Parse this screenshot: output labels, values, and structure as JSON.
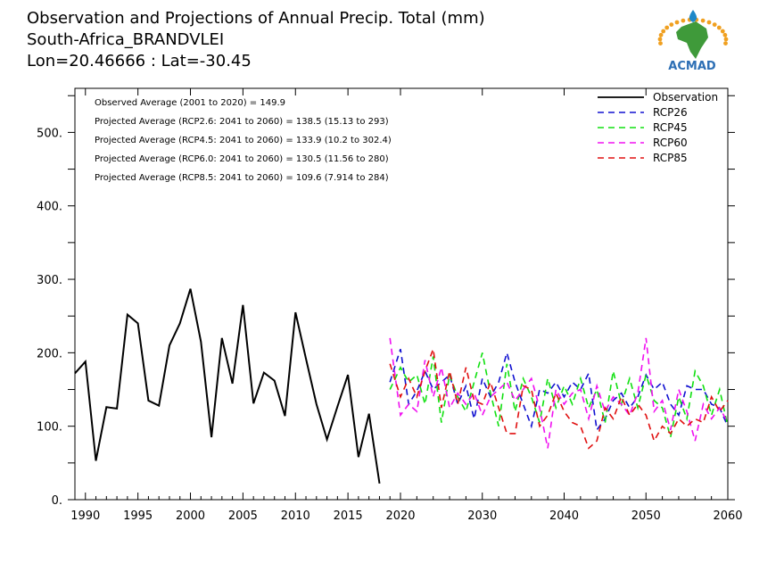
{
  "title": {
    "line1": "Observation and Projections of Annual Precip. Total (mm)",
    "line2": "South-Africa_BRANDVLEI",
    "line3": "Lon=20.46666 : Lat=-30.45"
  },
  "logo": {
    "text": "ACMAD",
    "colors": {
      "africa": "#3f9a3a",
      "ring": "#f0a020",
      "drop": "#1e88c8",
      "text": "#2d6fb5"
    }
  },
  "annotations": [
    "Observed Average (2001 to 2020) = 149.9",
    "Projected Average (RCP2.6: 2041 to 2060) = 138.5 (15.13 to 293)",
    "Projected Average (RCP4.5: 2041 to 2060) = 133.9 (10.2 to 302.4)",
    "Projected Average (RCP6.0: 2041 to 2060) = 130.5 (11.56 to 280)",
    "Projected Average (RCP8.5: 2041 to 2060) = 109.6 (7.914 to 284)"
  ],
  "chart_data": {
    "type": "line",
    "title": "Observation and Projections of Annual Precip. Total (mm)",
    "xlabel": "",
    "ylabel": "",
    "xlim": [
      1989,
      2060
    ],
    "ylim": [
      0,
      560
    ],
    "x_ticks_major": [
      1990,
      1995,
      2000,
      2005,
      2010,
      2015,
      2020,
      2030,
      2040,
      2050,
      2060
    ],
    "y_ticks_labeled": [
      {
        "value": 0,
        "label": "0."
      },
      {
        "value": 100,
        "label": "100."
      },
      {
        "value": 200,
        "label": "200."
      },
      {
        "value": 300,
        "label": "300."
      },
      {
        "value": 400,
        "label": "400."
      },
      {
        "value": 500,
        "label": "500."
      }
    ],
    "y_ticks_minor": [
      50,
      150,
      250,
      350,
      450,
      550
    ],
    "grid": false,
    "legend_position": "top-right",
    "series": [
      {
        "name": "Observation",
        "color": "#000000",
        "dash": "solid",
        "x": [
          1989,
          1990,
          1991,
          1992,
          1993,
          1994,
          1995,
          1996,
          1997,
          1998,
          1999,
          2000,
          2001,
          2002,
          2003,
          2004,
          2005,
          2006,
          2007,
          2008,
          2009,
          2010,
          2011,
          2012,
          2013,
          2014,
          2015,
          2016,
          2017,
          2018,
          2019
        ],
        "y": [
          172,
          188,
          53,
          126,
          124,
          252,
          240,
          135,
          128,
          210,
          240,
          287,
          215,
          85,
          220,
          158,
          265,
          131,
          173,
          162,
          114,
          255,
          192,
          130,
          82,
          127,
          170,
          58,
          117,
          22,
          null
        ]
      },
      {
        "name": "RCP26",
        "color": "#1010d0",
        "dash": "dashed",
        "x": [
          2019,
          2020,
          2021,
          2022,
          2023,
          2024,
          2025,
          2026,
          2027,
          2028,
          2029,
          2030,
          2031,
          2032,
          2033,
          2034,
          2035,
          2036,
          2037,
          2038,
          2039,
          2040,
          2041,
          2042,
          2043,
          2044,
          2045,
          2046,
          2047,
          2048,
          2049,
          2050,
          2051,
          2052,
          2053,
          2054,
          2055,
          2056,
          2057,
          2058,
          2059,
          2060
        ],
        "y": [
          160,
          205,
          130,
          148,
          175,
          150,
          160,
          170,
          130,
          155,
          110,
          165,
          140,
          160,
          200,
          160,
          130,
          100,
          150,
          145,
          160,
          140,
          160,
          150,
          172,
          95,
          110,
          135,
          145,
          125,
          140,
          170,
          150,
          160,
          130,
          115,
          155,
          150,
          150,
          130,
          125,
          100
        ]
      },
      {
        "name": "RCP45",
        "color": "#10e010",
        "dash": "dashed",
        "x": [
          2019,
          2020,
          2021,
          2022,
          2023,
          2024,
          2025,
          2026,
          2027,
          2028,
          2029,
          2030,
          2031,
          2032,
          2033,
          2034,
          2035,
          2036,
          2037,
          2038,
          2039,
          2040,
          2041,
          2042,
          2043,
          2044,
          2045,
          2046,
          2047,
          2048,
          2049,
          2050,
          2051,
          2052,
          2053,
          2054,
          2055,
          2056,
          2057,
          2058,
          2059,
          2060
        ],
        "y": [
          150,
          180,
          160,
          170,
          130,
          195,
          105,
          170,
          140,
          120,
          160,
          200,
          145,
          100,
          185,
          120,
          165,
          140,
          105,
          165,
          125,
          155,
          130,
          165,
          125,
          150,
          105,
          175,
          130,
          165,
          125,
          170,
          135,
          125,
          85,
          140,
          110,
          175,
          155,
          115,
          150,
          100
        ]
      },
      {
        "name": "RCP60",
        "color": "#f010f0",
        "dash": "dashed",
        "x": [
          2019,
          2020,
          2021,
          2022,
          2023,
          2024,
          2025,
          2026,
          2027,
          2028,
          2029,
          2030,
          2031,
          2032,
          2033,
          2034,
          2035,
          2036,
          2037,
          2038,
          2039,
          2040,
          2041,
          2042,
          2043,
          2044,
          2045,
          2046,
          2047,
          2048,
          2049,
          2050,
          2051,
          2052,
          2053,
          2054,
          2055,
          2056,
          2057,
          2058,
          2059,
          2060
        ],
        "y": [
          220,
          115,
          130,
          120,
          190,
          140,
          180,
          125,
          145,
          130,
          145,
          115,
          140,
          150,
          160,
          135,
          150,
          165,
          125,
          70,
          150,
          130,
          145,
          150,
          110,
          155,
          120,
          140,
          130,
          115,
          145,
          220,
          120,
          135,
          95,
          150,
          120,
          80,
          130,
          110,
          125,
          105
        ]
      },
      {
        "name": "RCP85",
        "color": "#e01010",
        "dash": "dashed",
        "x": [
          2019,
          2020,
          2021,
          2022,
          2023,
          2024,
          2025,
          2026,
          2027,
          2028,
          2029,
          2030,
          2031,
          2032,
          2033,
          2034,
          2035,
          2036,
          2037,
          2038,
          2039,
          2040,
          2041,
          2042,
          2043,
          2044,
          2045,
          2046,
          2047,
          2048,
          2049,
          2050,
          2051,
          2052,
          2053,
          2054,
          2055,
          2056,
          2057,
          2058,
          2059,
          2060
        ],
        "y": [
          185,
          140,
          165,
          140,
          175,
          205,
          125,
          175,
          130,
          180,
          135,
          130,
          160,
          125,
          90,
          90,
          155,
          150,
          100,
          115,
          145,
          120,
          105,
          100,
          70,
          80,
          125,
          110,
          140,
          115,
          130,
          115,
          80,
          100,
          90,
          110,
          100,
          110,
          105,
          140,
          120,
          135
        ]
      }
    ]
  }
}
